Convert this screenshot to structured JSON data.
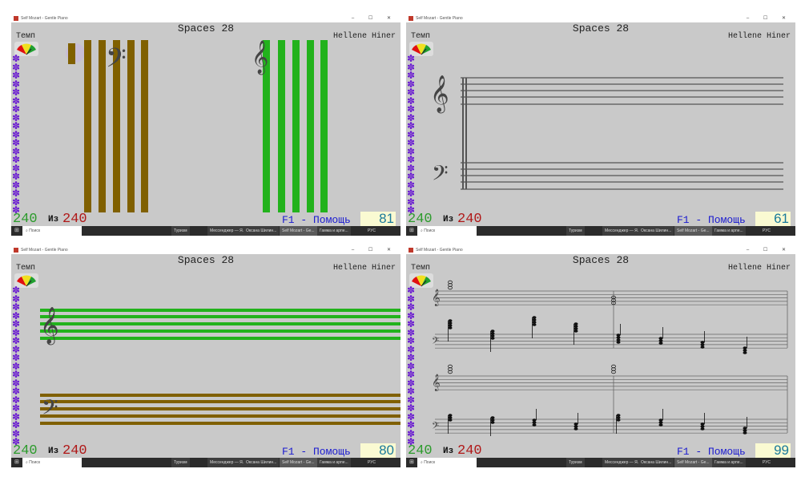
{
  "window_title": "Self Mozart - Gentle Piano",
  "window_controls": "– ☐ ✕",
  "colors": {
    "accent_green": "#2c9b2c",
    "total_red": "#b01818",
    "help_blue": "#1a1ad0",
    "score_teal": "#1a7a9a",
    "bar_green": "#22b21c",
    "bar_brown": "#806000",
    "flower_purple": "#6a1bd1"
  },
  "panels": [
    {
      "title": "Spaces 28",
      "user": "Hellene Hiner",
      "tempo_label": "Темп",
      "count": "240",
      "of_label": "Из",
      "total": "240",
      "help": "F1 - Помощь",
      "score": "81",
      "view": "vertical-bars"
    },
    {
      "title": "Spaces 28",
      "user": "Hellene Hiner",
      "tempo_label": "Темп",
      "count": "240",
      "of_label": "Из",
      "total": "240",
      "help": "F1 - Помощь",
      "score": "61",
      "view": "grand-staff"
    },
    {
      "title": "Spaces 28",
      "user": "Hellene Hiner",
      "tempo_label": "Темп",
      "count": "240",
      "of_label": "Из",
      "total": "240",
      "help": "F1 - Помощь",
      "score": "80",
      "view": "colored-staff"
    },
    {
      "title": "Spaces 28",
      "user": "Hellene Hiner",
      "tempo_label": "Темп",
      "count": "240",
      "of_label": "Из",
      "total": "240",
      "help": "F1 - Помощь",
      "score": "99",
      "view": "sheet-music"
    }
  ],
  "taskbar": {
    "search": "Поиск",
    "items": [
      "Туризм",
      "Мессенджер — Я...",
      "Оксана Шилин...",
      "Self Mozart - Ge...",
      "Гамма и арпе..."
    ],
    "lang": "РУС",
    "start_icon": "windows-icon"
  }
}
